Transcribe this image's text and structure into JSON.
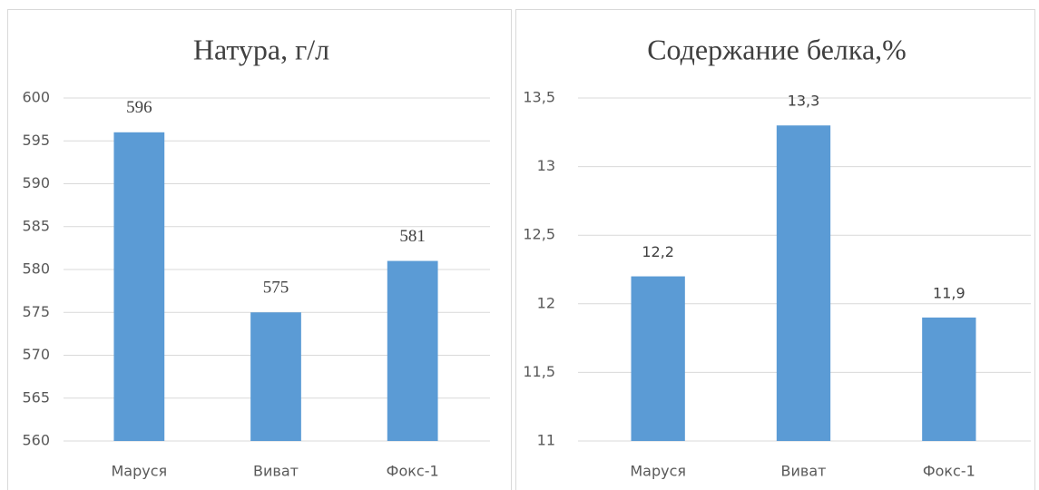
{
  "chart_data": [
    {
      "type": "bar",
      "title": "Натура, г/л",
      "categories": [
        "Маруся",
        "Виват",
        "Фокс-1"
      ],
      "values": [
        596,
        575,
        581
      ],
      "color": "#5b9bd5",
      "ylim": [
        560,
        600
      ],
      "yticks": [
        560,
        565,
        570,
        575,
        580,
        585,
        590,
        595,
        600
      ],
      "grid": true
    },
    {
      "type": "bar",
      "title": "Содержание белка,%",
      "categories": [
        "Маруся",
        "Виват",
        "Фокс-1"
      ],
      "values": [
        12.2,
        13.3,
        11.9
      ],
      "value_labels": [
        "12,2",
        "13,3",
        "11,9"
      ],
      "color": "#5b9bd5",
      "ylim": [
        11,
        13.5
      ],
      "yticks": [
        11,
        {
          "value": 11.5,
          "label": "11,5"
        },
        12,
        {
          "value": 12.5,
          "label": "12,5"
        },
        13,
        {
          "value": 13.5,
          "label": "13,5"
        }
      ],
      "grid": true
    }
  ]
}
